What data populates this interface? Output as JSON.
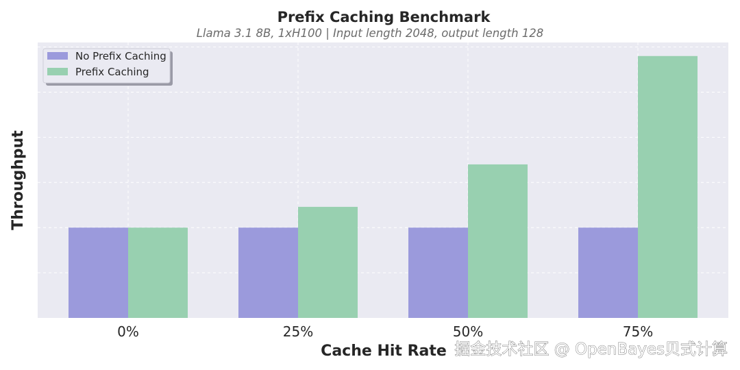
{
  "chart_data": {
    "type": "bar",
    "title": "Prefix Caching Benchmark",
    "subtitle": "Llama 3.1 8B, 1xH100 | Input length 2048, output length 128",
    "xlabel": "Cache Hit Rate",
    "ylabel": "Throughput",
    "categories": [
      "0%",
      "25%",
      "50%",
      "75%"
    ],
    "series": [
      {
        "name": "No Prefix Caching",
        "color": "#9b9adc",
        "values": [
          1.0,
          1.0,
          1.0,
          1.0
        ]
      },
      {
        "name": "Prefix Caching",
        "color": "#98d0b0",
        "values": [
          1.0,
          1.23,
          1.7,
          2.9
        ]
      }
    ],
    "ylim": [
      0,
      3.05
    ],
    "y_ticks_visible": false,
    "grid": true,
    "legend_position": "top-left",
    "plot_background": "#eaeaf2"
  },
  "watermark": "掘金技术社区 @ OpenBayes贝式计算"
}
